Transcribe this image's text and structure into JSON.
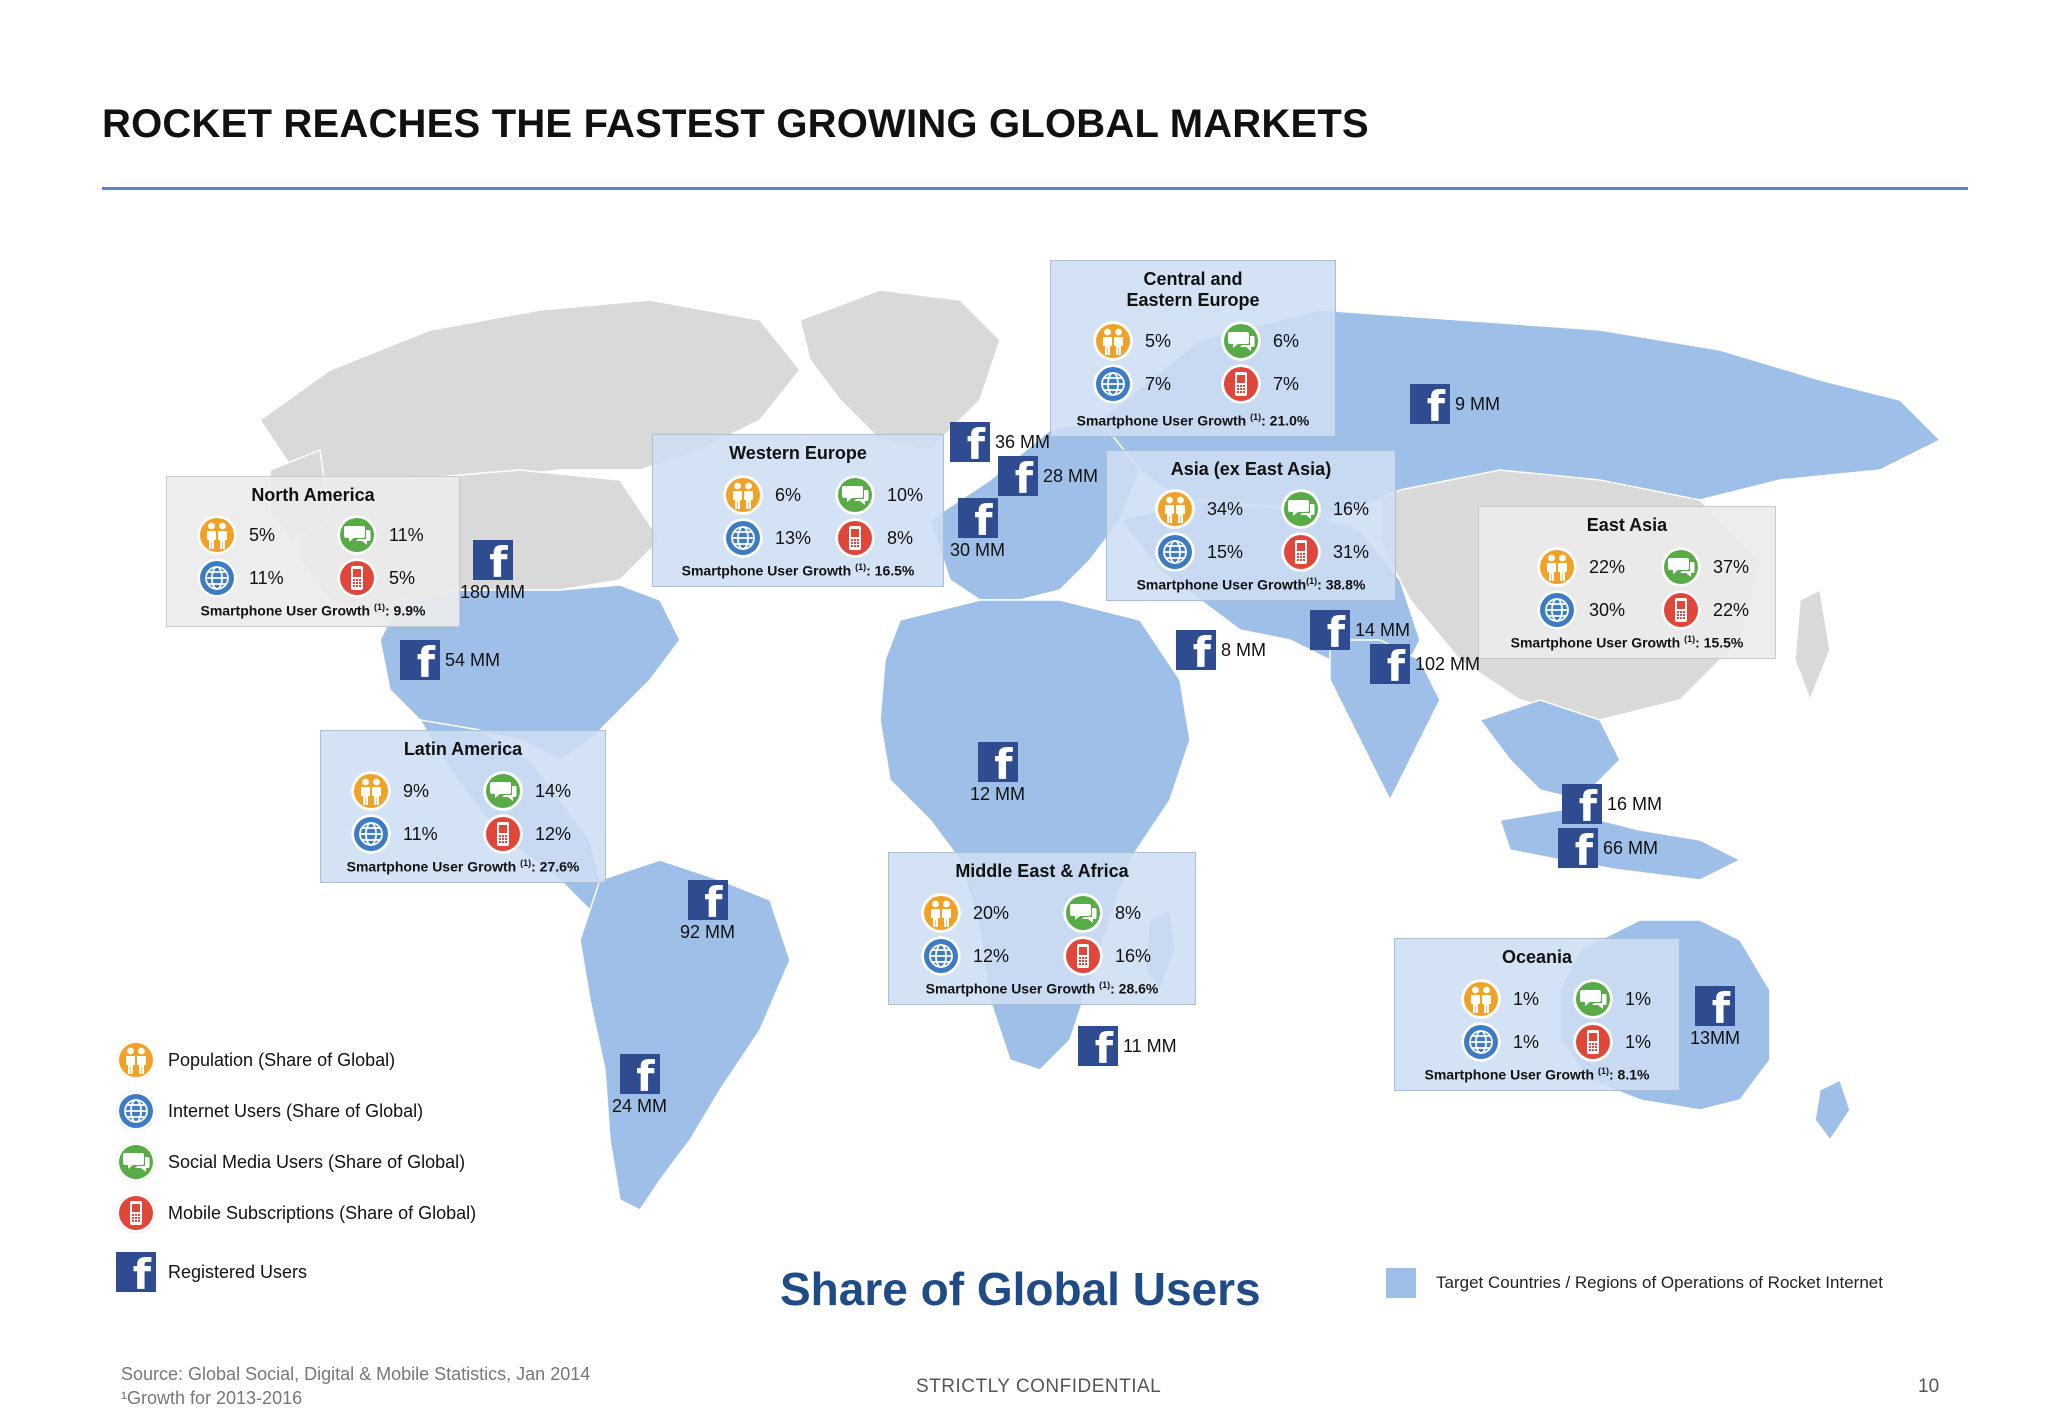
{
  "title": "ROCKET REACHES THE FASTEST GROWING GLOBAL MARKETS",
  "colors": {
    "target": "#9dbfe8",
    "land": "#d9d9d9",
    "rule": "#5b86c5",
    "population": "#f2a127",
    "internet": "#3d7cc3",
    "social": "#58ab46",
    "mobile": "#e0463a",
    "facebook": "#2e4c8f",
    "share_title": "#1f4b86"
  },
  "icons": {
    "population": "population-icon",
    "internet": "globe-icon",
    "social": "speech-bubble-icon",
    "mobile": "mobile-phone-icon",
    "registered": "facebook-icon"
  },
  "regions": {
    "north_america": {
      "name": "North America",
      "population": "5%",
      "social": "11%",
      "internet": "11%",
      "mobile": "5%",
      "growth_label": "Smartphone User Growth",
      "growth_sup": "(1)",
      "growth_value": ": 9.9%"
    },
    "western_europe": {
      "name": "Western Europe",
      "population": "6%",
      "social": "10%",
      "internet": "13%",
      "mobile": "8%",
      "growth_label": "Smartphone User Growth",
      "growth_sup": "(1)",
      "growth_value": ": 16.5%"
    },
    "central_eastern_europe": {
      "name": "Central and Eastern Europe",
      "population": "5%",
      "social": "6%",
      "internet": "7%",
      "mobile": "7%",
      "growth_label": "Smartphone User Growth",
      "growth_sup": "(1)",
      "growth_value": ": 21.0%"
    },
    "asia_ex_east": {
      "name": "Asia (ex East Asia)",
      "population": "34%",
      "social": "16%",
      "internet": "15%",
      "mobile": "31%",
      "growth_label": "Smartphone User Growth",
      "growth_sup": "(1)",
      "growth_value": ": 38.8%"
    },
    "east_asia": {
      "name": "East Asia",
      "population": "22%",
      "social": "37%",
      "internet": "30%",
      "mobile": "22%",
      "growth_label": "Smartphone User Growth",
      "growth_sup": "(1)",
      "growth_value": ": 15.5%"
    },
    "latin_america": {
      "name": "Latin America",
      "population": "9%",
      "social": "14%",
      "internet": "11%",
      "mobile": "12%",
      "growth_label": "Smartphone User Growth",
      "growth_sup": "(1)",
      "growth_value": ": 27.6%"
    },
    "middle_east_africa": {
      "name": "Middle East & Africa",
      "population": "20%",
      "social": "8%",
      "internet": "12%",
      "mobile": "16%",
      "growth_label": "Smartphone User Growth",
      "growth_sup": "(1)",
      "growth_value": ": 28.6%"
    },
    "oceania": {
      "name": "Oceania",
      "population": "1%",
      "social": "1%",
      "internet": "1%",
      "mobile": "1%",
      "growth_label": "Smartphone User Growth",
      "growth_sup": "(1)",
      "growth_value": ": 8.1%"
    }
  },
  "registered_users": {
    "usa": "180 MM",
    "mexico": "54 MM",
    "brazil": "92 MM",
    "argentina": "24 MM",
    "uk": "36 MM",
    "germany": "28 MM",
    "spain": "30 MM",
    "russia": "9 MM",
    "saudi": "8 MM",
    "pakistan": "14 MM",
    "india": "102 MM",
    "nigeria": "12 MM",
    "south_africa": "11 MM",
    "philippines": "16 MM",
    "indonesia": "66 MM",
    "australia": "13MM"
  },
  "legend": {
    "population": "Population (Share of Global)",
    "internet": "Internet Users (Share of Global)",
    "social": "Social Media Users (Share of Global)",
    "mobile": "Mobile Subscriptions (Share of Global)",
    "registered": "Registered Users"
  },
  "share_title": "Share of Global Users",
  "target_label": "Target Countries  / Regions of Operations of Rocket Internet",
  "footer": {
    "source": "Source: Global Social, Digital & Mobile Statistics, Jan 2014",
    "note": "¹Growth for 2013-2016",
    "confidential": "STRICTLY CONFIDENTIAL",
    "page": "10"
  }
}
